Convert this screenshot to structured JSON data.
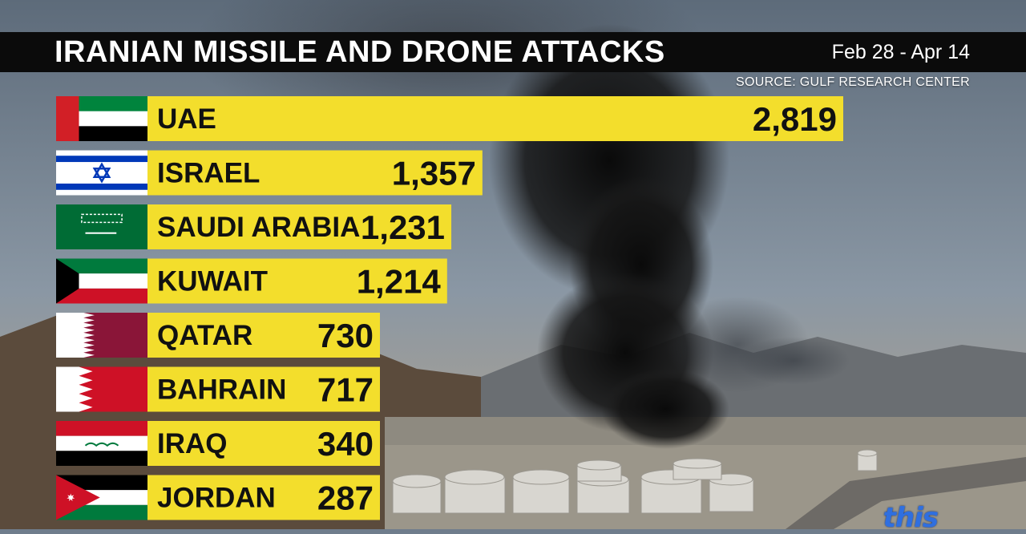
{
  "header": {
    "title": "IRANIAN MISSILE AND DRONE ATTACKS",
    "date_range": "Feb 28 - Apr 14",
    "source": "SOURCE: GULF RESEARCH CENTER"
  },
  "colors": {
    "bar": "#f3de2c",
    "header_bg": "#0b0b0b",
    "text": "#111111"
  },
  "chart_data": {
    "type": "bar",
    "orientation": "horizontal",
    "title": "IRANIAN MISSILE AND DRONE ATTACKS",
    "subtitle": "Feb 28 - Apr 14",
    "xlabel": "",
    "ylabel": "",
    "grid": false,
    "categories": [
      "UAE",
      "ISRAEL",
      "SAUDI ARABIA",
      "KUWAIT",
      "QATAR",
      "BAHRAIN",
      "IRAQ",
      "JORDAN"
    ],
    "values": [
      2819,
      1357,
      1231,
      1214,
      730,
      717,
      340,
      287
    ],
    "value_labels": [
      "2,819",
      "1,357",
      "1,231",
      "1,214",
      "730",
      "717",
      "340",
      "287"
    ],
    "flags": [
      "uae-flag",
      "israel-flag",
      "saudi-arabia-flag",
      "kuwait-flag",
      "qatar-flag",
      "bahrain-flag",
      "iraq-flag",
      "jordan-flag"
    ]
  },
  "logo": {
    "text": "this"
  }
}
